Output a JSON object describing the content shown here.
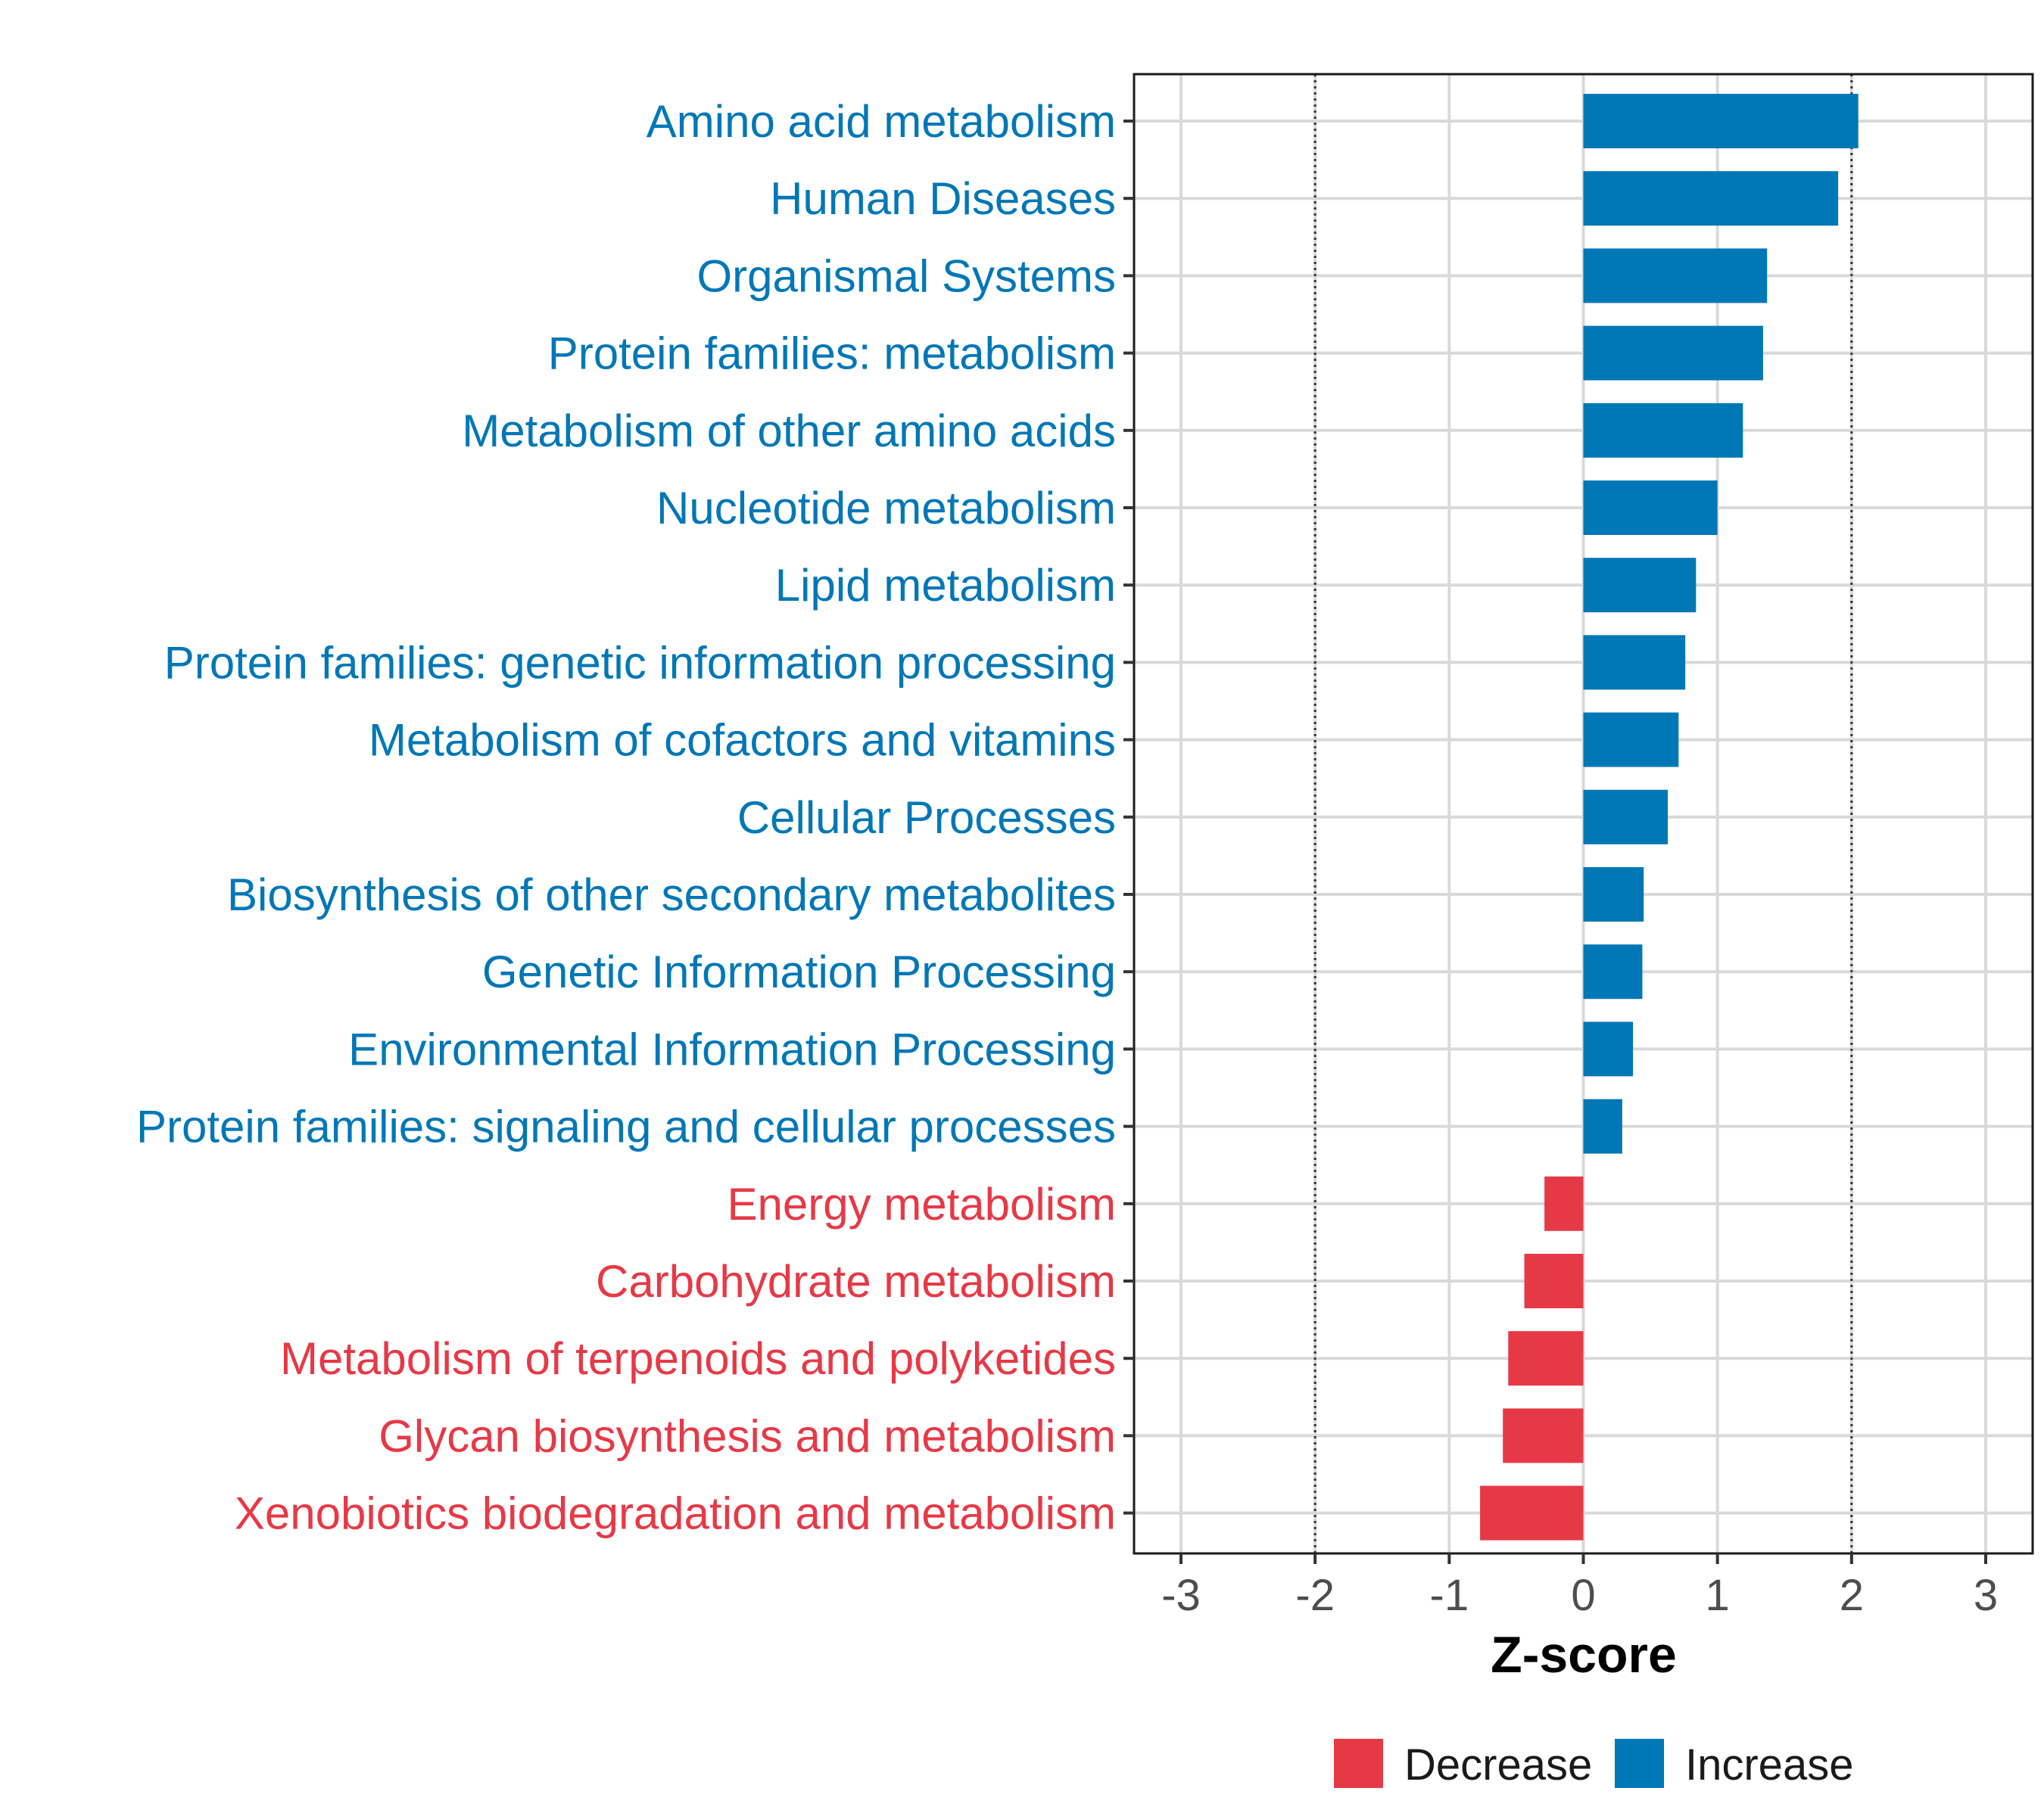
{
  "chart_data": {
    "type": "bar",
    "orientation": "horizontal",
    "categories": [
      "Amino acid metabolism",
      "Human Diseases",
      "Organismal Systems",
      "Protein families: metabolism",
      "Metabolism of other amino acids",
      "Nucleotide metabolism",
      "Lipid metabolism",
      "Protein families: genetic information processing",
      "Metabolism of cofactors and vitamins",
      "Cellular Processes",
      "Biosynthesis of other secondary metabolites",
      "Genetic Information Processing",
      "Environmental Information Processing",
      "Protein families: signaling and cellular processes",
      "Energy metabolism",
      "Carbohydrate metabolism",
      "Metabolism of terpenoids and polyketides",
      "Glycan biosynthesis and metabolism",
      "Xenobiotics biodegradation and metabolism"
    ],
    "values": [
      2.05,
      1.9,
      1.37,
      1.34,
      1.19,
      1.0,
      0.84,
      0.76,
      0.71,
      0.63,
      0.45,
      0.44,
      0.37,
      0.29,
      -0.29,
      -0.44,
      -0.56,
      -0.6,
      -0.77
    ],
    "groups": [
      "Increase",
      "Increase",
      "Increase",
      "Increase",
      "Increase",
      "Increase",
      "Increase",
      "Increase",
      "Increase",
      "Increase",
      "Increase",
      "Increase",
      "Increase",
      "Increase",
      "Decrease",
      "Decrease",
      "Decrease",
      "Decrease",
      "Decrease"
    ],
    "xlabel": "Z-score",
    "ylabel": "",
    "xlim": [
      -3.35,
      3.35
    ],
    "xticks": [
      -3,
      -2,
      -1,
      0,
      1,
      2,
      3
    ],
    "xtick_labels": [
      "-3",
      "-2",
      "-1",
      "0",
      "1",
      "2",
      "3"
    ],
    "reference_lines": [
      -2,
      2
    ],
    "grid": true,
    "legend": {
      "position": "bottom",
      "entries": [
        {
          "label": "Decrease",
          "color": "#E63946"
        },
        {
          "label": "Increase",
          "color": "#0077B6"
        }
      ]
    },
    "colors": {
      "Decrease": "#E63946",
      "Increase": "#0077B6"
    }
  }
}
